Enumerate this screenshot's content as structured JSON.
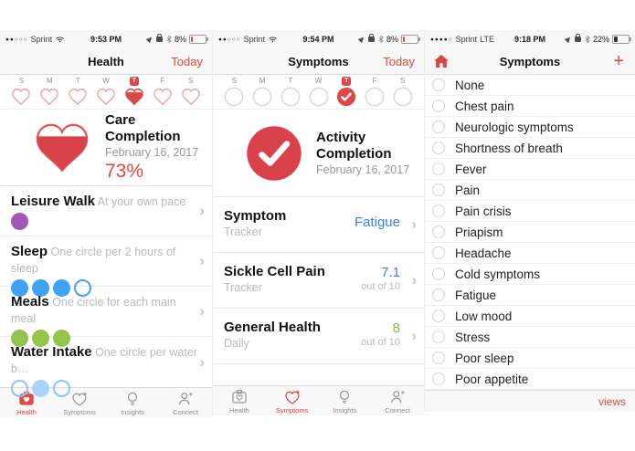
{
  "colors": {
    "red": "#de4a46",
    "red_text": "#e0483e",
    "blue_value": "#3b7df2",
    "green_value": "#7cc142",
    "circle_blue": "#3fa2f7",
    "circle_lightblue": "#a9d3f7",
    "circle_green": "#94c44e",
    "circle_purple": "#a259b5",
    "heart_outline_pink": "#f0a4a9"
  },
  "tab_labels": [
    "Health",
    "Symptoms",
    "Insights",
    "Connect"
  ],
  "left": {
    "status": {
      "signal": "●●○○○",
      "carrier": "Sprint",
      "time": "9:53 PM",
      "battery": "8%"
    },
    "nav": {
      "title": "Health",
      "action": "Today"
    },
    "days": {
      "letters": [
        "S",
        "M",
        "T",
        "W",
        "T",
        "F",
        "S"
      ],
      "selected": 4,
      "badge": "T"
    },
    "summary": {
      "title": "Care Completion",
      "date": "February 16, 2017",
      "value": "73%"
    },
    "rows": [
      {
        "title": "Leisure Walk",
        "subtitle": "At your own pace",
        "dots": [
          "purple-filled"
        ]
      },
      {
        "title": "Sleep",
        "subtitle": "One circle per 2 hours of sleep",
        "dots": [
          "blue-filled",
          "blue-filled",
          "blue-filled",
          "blue-outline"
        ]
      },
      {
        "title": "Meals",
        "subtitle": "One circle for each main meal",
        "dots": [
          "green-filled",
          "green-filled",
          "green-filled"
        ]
      },
      {
        "title": "Water Intake",
        "subtitle": "One circle per water b…",
        "dots": [
          "lightblue-outline",
          "lightblue-filled",
          "lightblue-outline"
        ]
      }
    ],
    "active_tab": 0
  },
  "middle": {
    "status": {
      "signal": "●●○○○",
      "carrier": "Sprint",
      "time": "9:54 PM",
      "battery": "8%"
    },
    "nav": {
      "title": "Symptoms",
      "action": "Today"
    },
    "days": {
      "letters": [
        "S",
        "M",
        "T",
        "W",
        "T",
        "F",
        "S"
      ],
      "selected": 4,
      "badge": "T"
    },
    "summary": {
      "title": "Activity Completion",
      "date": "February 16, 2017"
    },
    "rows": [
      {
        "title": "Symptom",
        "subtitle": "Tracker",
        "value": "Fatigue",
        "color": "blue",
        "value_sub": ""
      },
      {
        "title": "Sickle Cell Pain",
        "subtitle": "Tracker",
        "value": "7.1",
        "color": "blue",
        "value_sub": "out of 10"
      },
      {
        "title": "General Health",
        "subtitle": "Daily",
        "value": "8",
        "color": "green",
        "value_sub": "out of 10"
      }
    ],
    "active_tab": 1
  },
  "right": {
    "status": {
      "signal": "●●●●○",
      "carrier": "Sprint",
      "network": "LTE",
      "time": "9:18 PM",
      "battery": "22%"
    },
    "nav": {
      "title": "Symptoms",
      "plus_label": "+"
    },
    "items": [
      "None",
      "Chest pain",
      "Neurologic symptoms",
      "Shortness of breath",
      "Fever",
      "Pain",
      "Pain crisis",
      "Priapism",
      "Headache",
      "Cold symptoms",
      "Fatigue",
      "Low mood",
      "Stress",
      "Poor sleep",
      "Poor appetite"
    ],
    "footer": {
      "action": "views"
    }
  }
}
